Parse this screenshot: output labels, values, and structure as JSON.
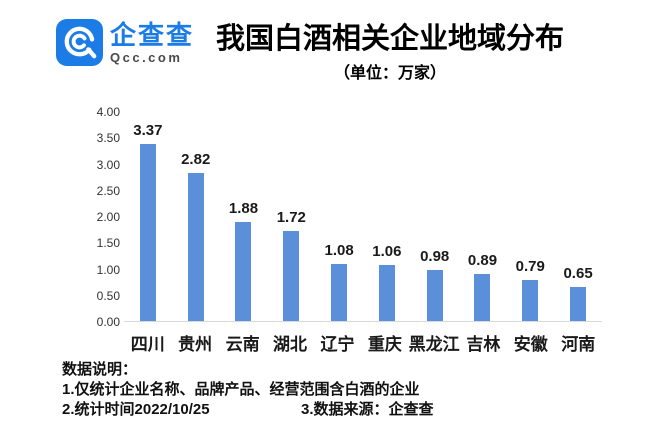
{
  "logo": {
    "brand": "企查查",
    "domain": "Qcc.com",
    "brand_color": "#1b7ce5"
  },
  "header": {
    "title": "我国白酒相关企业地域分布",
    "subtitle": "（单位：万家）"
  },
  "chart_data": {
    "type": "bar",
    "categories": [
      "四川",
      "贵州",
      "云南",
      "湖北",
      "辽宁",
      "重庆",
      "黑龙江",
      "吉林",
      "安徽",
      "河南"
    ],
    "values": [
      3.37,
      2.82,
      1.88,
      1.72,
      1.08,
      1.06,
      0.98,
      0.89,
      0.79,
      0.65
    ],
    "title": "我国白酒相关企业地域分布",
    "subtitle": "（单位：万家）",
    "xlabel": "",
    "ylabel": "",
    "ylim": [
      0,
      4
    ],
    "yticks": [
      "4.00",
      "3.50",
      "3.00",
      "2.50",
      "2.00",
      "1.50",
      "1.00",
      "0.50",
      "0.00"
    ],
    "grid": false,
    "legend": "none",
    "bar_color": "#5b8fd9",
    "axis_line_color": "#d9d9d9"
  },
  "footer": {
    "heading": "数据说明：",
    "note1": "1.仅统计企业名称、品牌产品、经营范围含白酒的企业",
    "note2": "2.统计时间2022/10/25",
    "note3": "3.数据来源：企查查"
  }
}
